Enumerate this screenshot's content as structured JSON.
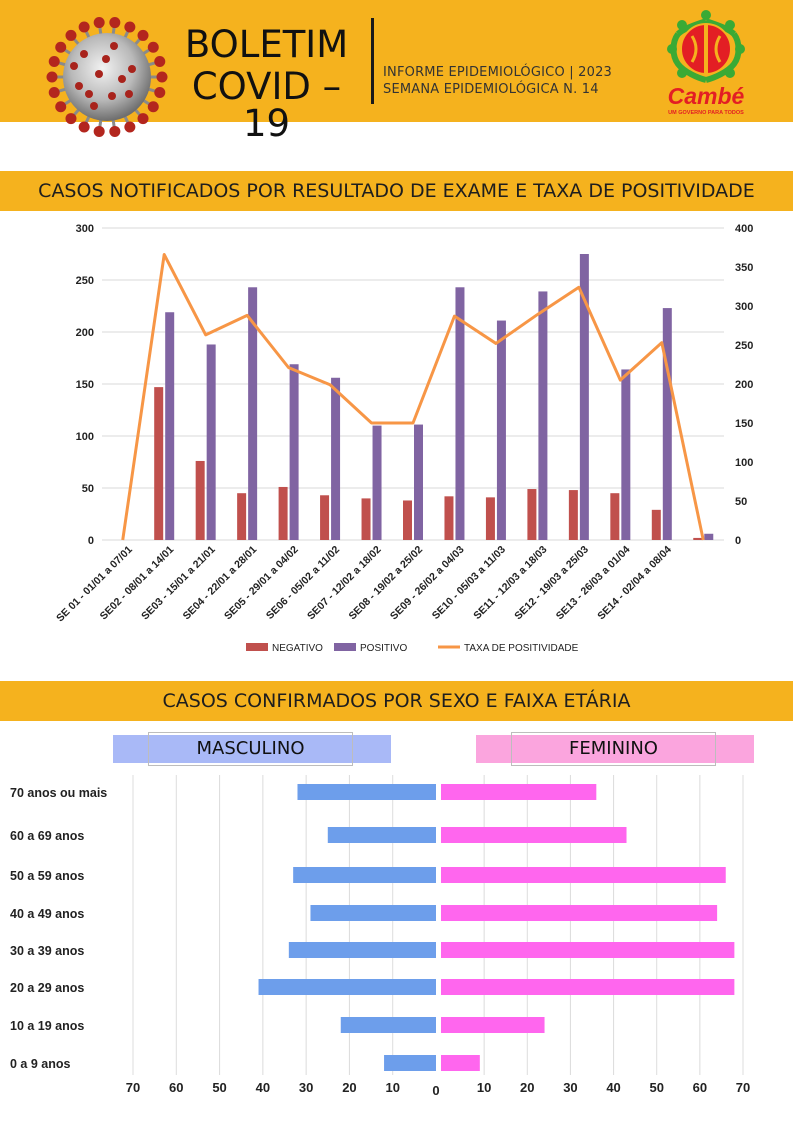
{
  "header": {
    "title_line1": "BOLETIM",
    "title_line2": "COVID – 19",
    "subtitle_line1": "INFORME EPIDEMIOLÓGICO | 2023",
    "subtitle_line2": "SEMANA EPIDEMIOLÓGICA  N. 14",
    "logo_text": "Cambé",
    "logo_tagline": "UM GOVERNO PARA TODOS"
  },
  "colors": {
    "band": "#f5b21e",
    "negativo": "#c0504d",
    "positivo": "#8064a2",
    "taxa": "#f79646",
    "masculino": "#6d9eeb",
    "feminino": "#ff66ee",
    "logo_red": "#e31e24",
    "logo_green": "#3aaa35"
  },
  "sections": {
    "exams_title": "CASOS NOTIFICADOS POR RESULTADO DE EXAME E TAXA DE POSITIVIDADE",
    "sex_age_title": "CASOS CONFIRMADOS POR SEXO E FAIXA ETÁRIA"
  },
  "chart_data": [
    {
      "type": "bar",
      "title": "CASOS NOTIFICADOS POR RESULTADO DE EXAME E TAXA DE POSITIVIDADE",
      "categories": [
        "SE 01 - 01/01 a 07/01",
        "SE02 - 08/01 a 14/01",
        "SE03 - 15/01 a 21/01",
        "SE04 - 22/01 a 28/01",
        "SE05 - 29/01 a 04/02",
        "SE06 - 05/02 a 11/02",
        "SE07 - 12/02 a 18/02",
        "SE08 - 19/02 a 25/02",
        "SE09 - 26/02 a 04/03",
        "SE10 - 05/03 a 11/03",
        "SE11 - 12/03 a 18/03",
        "SE12 - 19/03 a 25/03",
        "SE13 - 26/03 a 01/04",
        "SE14 - 02/04 a 08/04",
        ""
      ],
      "series": [
        {
          "name": "NEGATIVO",
          "type": "bar",
          "axis": "left",
          "values": [
            0,
            147,
            76,
            45,
            51,
            43,
            40,
            38,
            42,
            41,
            49,
            48,
            45,
            29,
            2
          ]
        },
        {
          "name": "POSITIVO",
          "type": "bar",
          "axis": "left",
          "values": [
            0,
            219,
            188,
            243,
            169,
            156,
            110,
            111,
            243,
            211,
            239,
            275,
            164,
            223,
            6
          ]
        },
        {
          "name": "TAXA DE POSITIVIDADE",
          "type": "line",
          "axis": "right",
          "values": [
            0,
            366,
            263,
            288,
            221,
            199,
            150,
            150,
            287,
            252,
            289,
            324,
            205,
            253,
            0
          ]
        }
      ],
      "y_left": {
        "min": 0,
        "max": 300,
        "ticks": [
          0,
          50,
          100,
          150,
          200,
          250,
          300
        ]
      },
      "y_right": {
        "min": 0,
        "max": 400,
        "ticks": [
          0,
          50,
          100,
          150,
          200,
          250,
          300,
          350,
          400
        ]
      },
      "grid": true,
      "legend": "bottom"
    },
    {
      "type": "bar",
      "orientation": "horizontal-butterfly",
      "title": "CASOS CONFIRMADOS POR SEXO E FAIXA ETÁRIA",
      "categories": [
        "70 anos ou mais",
        "60 a 69 anos",
        "50 a 59 anos",
        "40 a 49 anos",
        "30 a 39 anos",
        "20 a 29 anos",
        "10 a 19 anos",
        "0 a 9 anos"
      ],
      "series": [
        {
          "name": "MASCULINO",
          "values": [
            32,
            25,
            33,
            29,
            34,
            41,
            22,
            12
          ]
        },
        {
          "name": "FEMININO",
          "values": [
            36,
            43,
            66,
            64,
            68,
            68,
            24,
            9
          ]
        }
      ],
      "x_ticks_left": [
        70,
        60,
        50,
        40,
        30,
        20,
        10
      ],
      "x_ticks_right": [
        0,
        10,
        20,
        30,
        40,
        50,
        60,
        70
      ],
      "xlim": [
        0,
        70
      ],
      "grid": true
    }
  ]
}
